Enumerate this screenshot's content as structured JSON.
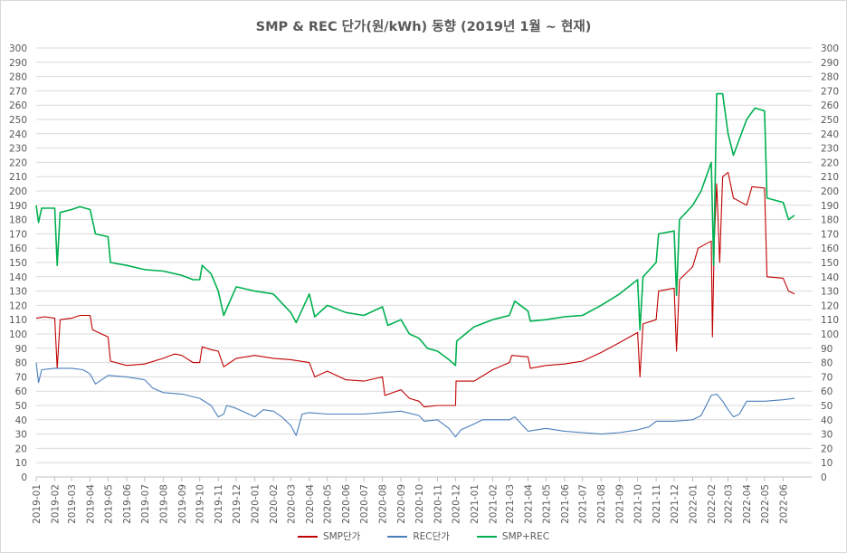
{
  "chart_data": {
    "type": "line",
    "title": "SMP & REC 단가(원/kWh) 동향 (2019년 1월 ~ 현재)",
    "xlabel": "",
    "ylabel": "",
    "ylim": [
      0,
      300
    ],
    "y_ticks": [
      0,
      10,
      20,
      30,
      40,
      50,
      60,
      70,
      80,
      90,
      100,
      110,
      120,
      130,
      140,
      150,
      160,
      170,
      180,
      190,
      200,
      210,
      220,
      230,
      240,
      250,
      260,
      270,
      280,
      290,
      300
    ],
    "x_ticks": [
      "2019-01",
      "2019-02",
      "2019-03",
      "2019-04",
      "2019-05",
      "2019-06",
      "2019-07",
      "2019-08",
      "2019-09",
      "2019-10",
      "2019-11",
      "2019-12",
      "2020-01",
      "2020-02",
      "2020-03",
      "2020-04",
      "2020-05",
      "2020-06",
      "2020-07",
      "2020-08",
      "2020-09",
      "2020-10",
      "2020-11",
      "2020-12",
      "2021-01",
      "2021-02",
      "2021-03",
      "2021-04",
      "2021-05",
      "2021-06",
      "2021-07",
      "2021-08",
      "2021-09",
      "2021-10",
      "2021-11",
      "2021-12",
      "2022-01",
      "2022-02",
      "2022-03",
      "2022-04",
      "2022-05",
      "2022-06"
    ],
    "grid": true,
    "legend_position": "bottom",
    "series": [
      {
        "name": "SMP단가",
        "color": "#c00000",
        "points": [
          [
            "2019-01-01",
            111
          ],
          [
            "2019-01-15",
            112
          ],
          [
            "2019-02-01",
            111
          ],
          [
            "2019-02-05",
            76
          ],
          [
            "2019-02-10",
            110
          ],
          [
            "2019-03-01",
            111
          ],
          [
            "2019-03-15",
            113
          ],
          [
            "2019-04-01",
            113
          ],
          [
            "2019-04-05",
            103
          ],
          [
            "2019-04-20",
            100
          ],
          [
            "2019-05-01",
            98
          ],
          [
            "2019-05-05",
            81
          ],
          [
            "2019-06-01",
            78
          ],
          [
            "2019-07-01",
            79
          ],
          [
            "2019-08-01",
            83
          ],
          [
            "2019-08-20",
            86
          ],
          [
            "2019-09-01",
            85
          ],
          [
            "2019-09-20",
            80
          ],
          [
            "2019-10-01",
            80
          ],
          [
            "2019-10-05",
            91
          ],
          [
            "2019-10-20",
            89
          ],
          [
            "2019-11-01",
            88
          ],
          [
            "2019-11-10",
            77
          ],
          [
            "2019-12-01",
            83
          ],
          [
            "2020-01-01",
            85
          ],
          [
            "2020-02-01",
            83
          ],
          [
            "2020-03-01",
            82
          ],
          [
            "2020-04-01",
            80
          ],
          [
            "2020-04-10",
            70
          ],
          [
            "2020-05-01",
            74
          ],
          [
            "2020-06-01",
            68
          ],
          [
            "2020-07-01",
            67
          ],
          [
            "2020-08-01",
            70
          ],
          [
            "2020-08-05",
            57
          ],
          [
            "2020-09-01",
            61
          ],
          [
            "2020-09-15",
            55
          ],
          [
            "2020-10-01",
            53
          ],
          [
            "2020-10-10",
            49
          ],
          [
            "2020-11-01",
            50
          ],
          [
            "2020-12-01",
            50
          ],
          [
            "2020-12-02",
            67
          ],
          [
            "2021-01-01",
            67
          ],
          [
            "2021-02-01",
            75
          ],
          [
            "2021-03-01",
            80
          ],
          [
            "2021-03-05",
            85
          ],
          [
            "2021-04-01",
            84
          ],
          [
            "2021-04-05",
            76
          ],
          [
            "2021-05-01",
            78
          ],
          [
            "2021-06-01",
            79
          ],
          [
            "2021-07-01",
            81
          ],
          [
            "2021-08-01",
            87
          ],
          [
            "2021-09-01",
            94
          ],
          [
            "2021-10-01",
            101
          ],
          [
            "2021-10-05",
            70
          ],
          [
            "2021-10-10",
            107
          ],
          [
            "2021-11-01",
            110
          ],
          [
            "2021-11-05",
            130
          ],
          [
            "2021-12-01",
            132
          ],
          [
            "2021-12-05",
            88
          ],
          [
            "2021-12-10",
            138
          ],
          [
            "2022-01-01",
            147
          ],
          [
            "2022-01-10",
            160
          ],
          [
            "2022-02-01",
            165
          ],
          [
            "2022-02-03",
            98
          ],
          [
            "2022-02-06",
            165
          ],
          [
            "2022-02-10",
            205
          ],
          [
            "2022-02-15",
            150
          ],
          [
            "2022-02-20",
            210
          ],
          [
            "2022-03-01",
            213
          ],
          [
            "2022-03-10",
            195
          ],
          [
            "2022-04-01",
            190
          ],
          [
            "2022-04-10",
            203
          ],
          [
            "2022-05-01",
            202
          ],
          [
            "2022-05-05",
            140
          ],
          [
            "2022-06-01",
            139
          ],
          [
            "2022-06-10",
            130
          ],
          [
            "2022-06-20",
            128
          ]
        ]
      },
      {
        "name": "REC단가",
        "color": "#4a7ebb",
        "points": [
          [
            "2019-01-01",
            80
          ],
          [
            "2019-01-05",
            66
          ],
          [
            "2019-01-10",
            75
          ],
          [
            "2019-02-01",
            76
          ],
          [
            "2019-03-01",
            76
          ],
          [
            "2019-03-20",
            75
          ],
          [
            "2019-04-01",
            72
          ],
          [
            "2019-04-10",
            65
          ],
          [
            "2019-05-01",
            71
          ],
          [
            "2019-06-01",
            70
          ],
          [
            "2019-07-01",
            68
          ],
          [
            "2019-07-15",
            62
          ],
          [
            "2019-08-01",
            59
          ],
          [
            "2019-09-01",
            58
          ],
          [
            "2019-10-01",
            55
          ],
          [
            "2019-10-20",
            50
          ],
          [
            "2019-11-01",
            42
          ],
          [
            "2019-11-10",
            44
          ],
          [
            "2019-11-15",
            50
          ],
          [
            "2019-12-01",
            48
          ],
          [
            "2020-01-01",
            42
          ],
          [
            "2020-01-15",
            47
          ],
          [
            "2020-02-01",
            46
          ],
          [
            "2020-02-15",
            42
          ],
          [
            "2020-03-01",
            36
          ],
          [
            "2020-03-10",
            29
          ],
          [
            "2020-03-20",
            44
          ],
          [
            "2020-04-01",
            45
          ],
          [
            "2020-05-01",
            44
          ],
          [
            "2020-06-01",
            44
          ],
          [
            "2020-07-01",
            44
          ],
          [
            "2020-08-01",
            45
          ],
          [
            "2020-09-01",
            46
          ],
          [
            "2020-10-01",
            43
          ],
          [
            "2020-10-10",
            39
          ],
          [
            "2020-11-01",
            40
          ],
          [
            "2020-11-20",
            34
          ],
          [
            "2020-12-01",
            28
          ],
          [
            "2020-12-10",
            33
          ],
          [
            "2021-01-01",
            37
          ],
          [
            "2021-01-15",
            40
          ],
          [
            "2021-02-01",
            40
          ],
          [
            "2021-03-01",
            40
          ],
          [
            "2021-03-10",
            42
          ],
          [
            "2021-04-01",
            32
          ],
          [
            "2021-05-01",
            34
          ],
          [
            "2021-06-01",
            32
          ],
          [
            "2021-07-01",
            31
          ],
          [
            "2021-08-01",
            30
          ],
          [
            "2021-09-01",
            31
          ],
          [
            "2021-10-01",
            33
          ],
          [
            "2021-10-20",
            35
          ],
          [
            "2021-11-01",
            39
          ],
          [
            "2021-12-01",
            39
          ],
          [
            "2022-01-01",
            40
          ],
          [
            "2022-01-15",
            43
          ],
          [
            "2022-02-01",
            57
          ],
          [
            "2022-02-10",
            58
          ],
          [
            "2022-02-20",
            53
          ],
          [
            "2022-03-01",
            47
          ],
          [
            "2022-03-10",
            42
          ],
          [
            "2022-03-20",
            44
          ],
          [
            "2022-04-01",
            53
          ],
          [
            "2022-05-01",
            53
          ],
          [
            "2022-06-01",
            54
          ],
          [
            "2022-06-20",
            55
          ]
        ]
      },
      {
        "name": "SMP+REC",
        "color": "#00b050",
        "points": [
          [
            "2019-01-01",
            190
          ],
          [
            "2019-01-05",
            178
          ],
          [
            "2019-01-10",
            188
          ],
          [
            "2019-02-01",
            188
          ],
          [
            "2019-02-05",
            148
          ],
          [
            "2019-02-10",
            185
          ],
          [
            "2019-03-01",
            187
          ],
          [
            "2019-03-15",
            189
          ],
          [
            "2019-04-01",
            187
          ],
          [
            "2019-04-10",
            170
          ],
          [
            "2019-05-01",
            168
          ],
          [
            "2019-05-05",
            150
          ],
          [
            "2019-06-01",
            148
          ],
          [
            "2019-07-01",
            145
          ],
          [
            "2019-08-01",
            144
          ],
          [
            "2019-09-01",
            141
          ],
          [
            "2019-09-20",
            138
          ],
          [
            "2019-10-01",
            138
          ],
          [
            "2019-10-05",
            148
          ],
          [
            "2019-10-20",
            142
          ],
          [
            "2019-11-01",
            130
          ],
          [
            "2019-11-10",
            113
          ],
          [
            "2019-12-01",
            133
          ],
          [
            "2020-01-01",
            130
          ],
          [
            "2020-02-01",
            128
          ],
          [
            "2020-03-01",
            115
          ],
          [
            "2020-03-10",
            108
          ],
          [
            "2020-04-01",
            128
          ],
          [
            "2020-04-10",
            112
          ],
          [
            "2020-05-01",
            120
          ],
          [
            "2020-06-01",
            115
          ],
          [
            "2020-07-01",
            113
          ],
          [
            "2020-08-01",
            119
          ],
          [
            "2020-08-10",
            106
          ],
          [
            "2020-09-01",
            110
          ],
          [
            "2020-09-15",
            100
          ],
          [
            "2020-10-01",
            97
          ],
          [
            "2020-10-15",
            90
          ],
          [
            "2020-11-01",
            88
          ],
          [
            "2020-11-20",
            82
          ],
          [
            "2020-12-01",
            78
          ],
          [
            "2020-12-03",
            95
          ],
          [
            "2021-01-01",
            105
          ],
          [
            "2021-02-01",
            110
          ],
          [
            "2021-03-01",
            113
          ],
          [
            "2021-03-10",
            123
          ],
          [
            "2021-04-01",
            116
          ],
          [
            "2021-04-05",
            109
          ],
          [
            "2021-05-01",
            110
          ],
          [
            "2021-06-01",
            112
          ],
          [
            "2021-07-01",
            113
          ],
          [
            "2021-08-01",
            120
          ],
          [
            "2021-09-01",
            128
          ],
          [
            "2021-10-01",
            138
          ],
          [
            "2021-10-05",
            103
          ],
          [
            "2021-10-10",
            140
          ],
          [
            "2021-11-01",
            150
          ],
          [
            "2021-11-05",
            170
          ],
          [
            "2021-12-01",
            172
          ],
          [
            "2021-12-05",
            127
          ],
          [
            "2021-12-10",
            180
          ],
          [
            "2022-01-01",
            190
          ],
          [
            "2022-01-15",
            200
          ],
          [
            "2022-02-01",
            220
          ],
          [
            "2022-02-05",
            148
          ],
          [
            "2022-02-10",
            268
          ],
          [
            "2022-02-20",
            268
          ],
          [
            "2022-03-01",
            240
          ],
          [
            "2022-03-10",
            225
          ],
          [
            "2022-04-01",
            250
          ],
          [
            "2022-04-15",
            258
          ],
          [
            "2022-05-01",
            256
          ],
          [
            "2022-05-05",
            195
          ],
          [
            "2022-06-01",
            192
          ],
          [
            "2022-06-10",
            180
          ],
          [
            "2022-06-20",
            183
          ]
        ]
      }
    ]
  }
}
